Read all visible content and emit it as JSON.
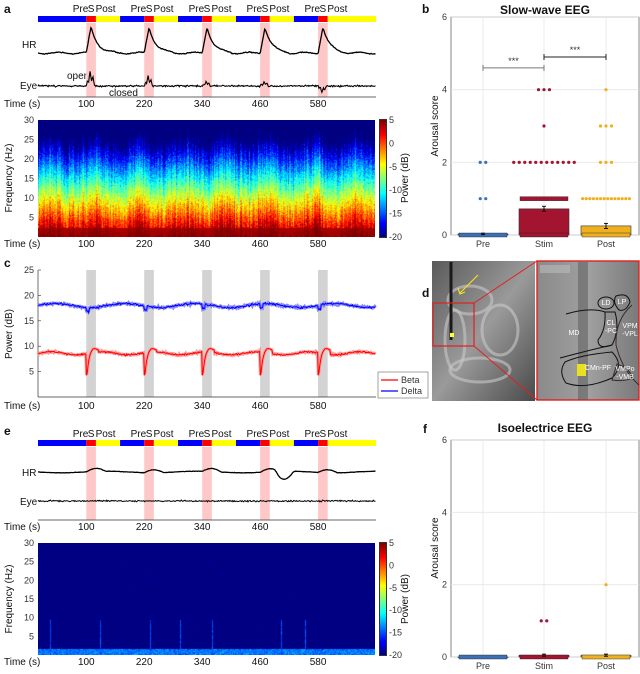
{
  "panel_labels": {
    "a": "a",
    "b": "b",
    "c": "c",
    "d": "d",
    "e": "e",
    "f": "f"
  },
  "phases": {
    "pre": "Pre",
    "stim": "S",
    "post": "Post"
  },
  "phase_colors": {
    "pre": "#0000ff",
    "stim": "#ff0000",
    "post": "#ffff00",
    "stim_shade": "#ffc8c8"
  },
  "stim_onsets_s": [
    100,
    220,
    340,
    460,
    580
  ],
  "stim_duration_s": 20,
  "time_end_s": 700,
  "time_label": "Time (s)",
  "time_ticks": [
    "100",
    "220",
    "340",
    "460",
    "580"
  ],
  "panel_a": {
    "hr_label": "HR",
    "eye_label": "Eye",
    "open_label": "open",
    "closed_label": "closed"
  },
  "spectrogram": {
    "ylabel": "Frequency (Hz)",
    "yticks": [
      "30",
      "25",
      "20",
      "15",
      "10",
      "5"
    ],
    "colorbar_label": "Power (dB)",
    "colorbar_ticks": [
      "5",
      "0",
      "-5",
      "-10",
      "-15",
      "-20"
    ],
    "clim": [
      -20,
      5
    ],
    "ylim": [
      0,
      30
    ],
    "colormap": "jet"
  },
  "panel_c": {
    "ylabel": "Power (dB)",
    "yticks": [
      "25",
      "20",
      "15",
      "10",
      "5"
    ],
    "ylim": [
      0,
      25
    ],
    "legend": [
      {
        "name": "Beta",
        "color": "#ff0000"
      },
      {
        "name": "Delta",
        "color": "#0000ff"
      }
    ],
    "stim_shade": "#d3d3d3"
  },
  "panel_d": {
    "labels": [
      "LD",
      "LP",
      "CL",
      "-PC",
      "MD",
      "VPM",
      "-VPL",
      "CMn-PF",
      "VMPo",
      "-VMB"
    ]
  },
  "panel_e": {
    "hr_label": "HR",
    "eye_label": "Eye"
  },
  "chart_data": [
    {
      "type": "bar",
      "title": "Slow-wave EEG",
      "ylabel": "Arousal score",
      "categories": [
        "Pre",
        "Stim",
        "Post"
      ],
      "yticks": [
        "0",
        "2",
        "4",
        "6"
      ],
      "ylim": [
        0,
        6
      ],
      "grid": true,
      "colors": [
        "#3b6fb6",
        "#a3142f",
        "#efb020"
      ],
      "means": [
        0.03,
        0.72,
        0.25
      ],
      "errors": [
        0.02,
        0.07,
        0.07
      ],
      "points": [
        {
          "0": 40,
          "1": 2,
          "2": 2
        },
        {
          "0": 40,
          "1": 40,
          "2": 12,
          "3": 1,
          "4": 3
        },
        {
          "0": 40,
          "1": 14,
          "2": 3,
          "3": 3,
          "4": 1
        }
      ],
      "significance": [
        {
          "from": "Pre",
          "to": "Stim",
          "label": "***"
        },
        {
          "from": "Stim",
          "to": "Post",
          "label": "***"
        }
      ]
    },
    {
      "type": "bar",
      "title": "Isoelectrice EEG",
      "ylabel": "Arousal score",
      "categories": [
        "Pre",
        "Stim",
        "Post"
      ],
      "yticks": [
        "0",
        "2",
        "4",
        "6"
      ],
      "ylim": [
        0,
        6
      ],
      "grid": true,
      "colors": [
        "#3b6fb6",
        "#a3142f",
        "#efb020"
      ],
      "means": [
        0.0,
        0.05,
        0.05
      ],
      "errors": [
        0.0,
        0.03,
        0.03
      ],
      "points": [
        {
          "0": 40
        },
        {
          "0": 40,
          "1": 2
        },
        {
          "0": 40,
          "2": 1
        }
      ],
      "significance": []
    }
  ]
}
